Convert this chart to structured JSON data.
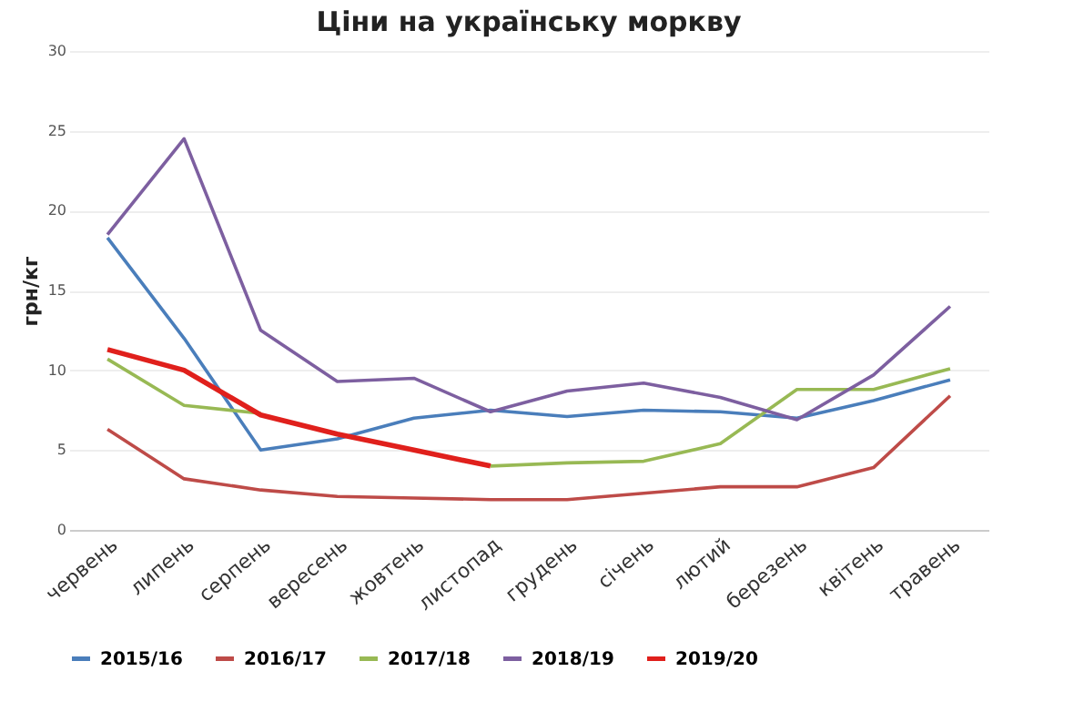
{
  "chart_data": {
    "type": "line",
    "title": "Ціни на українську моркву",
    "ylabel": "грн/кг",
    "categories": [
      "червень",
      "липень",
      "серпень",
      "вересень",
      "жовтень",
      "листопад",
      "грудень",
      "січень",
      "лютий",
      "березень",
      "квітень",
      "травень"
    ],
    "series": [
      {
        "name": "2015/16",
        "color": "#4a7ebb",
        "values": [
          18.3,
          12.0,
          5.0,
          5.7,
          7.0,
          7.5,
          7.1,
          7.5,
          7.4,
          7.0,
          8.1,
          9.4
        ]
      },
      {
        "name": "2016/17",
        "color": "#be4b48",
        "values": [
          6.3,
          3.2,
          2.5,
          2.1,
          2.0,
          1.9,
          1.9,
          2.3,
          2.7,
          2.7,
          3.9,
          8.4
        ]
      },
      {
        "name": "2017/18",
        "color": "#98b954",
        "values": [
          10.7,
          7.8,
          7.3,
          null,
          null,
          4.0,
          4.2,
          4.3,
          5.4,
          8.8,
          8.8,
          10.1
        ]
      },
      {
        "name": "2018/19",
        "color": "#7d5fa0",
        "values": [
          18.5,
          24.5,
          12.5,
          9.3,
          9.5,
          7.4,
          8.7,
          9.2,
          8.3,
          6.9,
          9.7,
          14.0
        ]
      },
      {
        "name": "2019/20",
        "color": "#e0201c",
        "values": [
          11.3,
          10.0,
          7.2,
          6.0,
          5.0,
          4.0,
          null,
          null,
          null,
          null,
          null,
          null
        ]
      }
    ],
    "ylim": [
      0,
      30
    ],
    "yticks": [
      0,
      5,
      10,
      15,
      20,
      25,
      30
    ],
    "grid": "y",
    "legend": "bottom"
  }
}
